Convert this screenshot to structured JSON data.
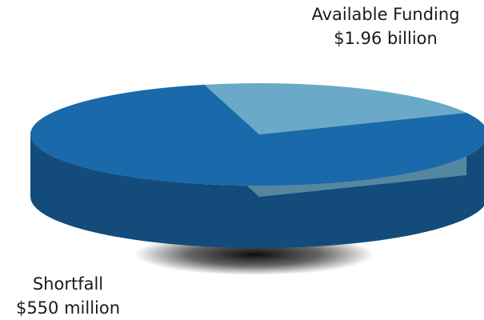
{
  "chart_data": {
    "type": "pie",
    "style": "3d",
    "slices": [
      {
        "label": "Available Funding",
        "value_text": "$1.96 billion",
        "value": 1960,
        "unit": "million USD",
        "color": "#1a69aa"
      },
      {
        "label": "Shortfall",
        "value_text": "$550 million",
        "value": 550,
        "unit": "million USD",
        "color": "#6aa9c8"
      }
    ],
    "title": "",
    "legend": "none"
  }
}
